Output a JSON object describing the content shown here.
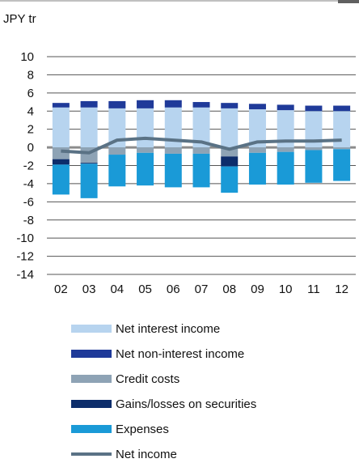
{
  "chart_data": {
    "type": "bar",
    "unit_label": "JPY tr",
    "categories": [
      "02",
      "03",
      "04",
      "05",
      "06",
      "07",
      "08",
      "09",
      "10",
      "11",
      "12"
    ],
    "ylim": [
      -14,
      10
    ],
    "yticks": [
      "10",
      "8",
      "6",
      "4",
      "2",
      "0",
      "-2",
      "-4",
      "-6",
      "-8",
      "-10",
      "-12",
      "-14"
    ],
    "grid": true,
    "legend_position": "bottom",
    "stacked_series": [
      {
        "name": "Net interest income",
        "color": "#b7d4ef",
        "sign": "positive",
        "values": [
          4.4,
          4.4,
          4.3,
          4.3,
          4.4,
          4.4,
          4.3,
          4.2,
          4.1,
          4.0,
          4.0
        ]
      },
      {
        "name": "Net non-interest income",
        "color": "#1f3a99",
        "sign": "positive",
        "values": [
          0.5,
          0.7,
          0.8,
          0.9,
          0.8,
          0.6,
          0.6,
          0.6,
          0.6,
          0.6,
          0.6
        ]
      },
      {
        "name": "Credit costs",
        "color": "#8ea3b5",
        "sign": "negative",
        "values": [
          -1.3,
          -1.7,
          -0.8,
          -0.6,
          -0.7,
          -0.7,
          -1.0,
          -0.6,
          -0.5,
          -0.3,
          -0.2
        ]
      },
      {
        "name": "Gains/losses on securities",
        "color": "#0d2d6b",
        "sign": "negative",
        "values": [
          -0.6,
          -0.1,
          0,
          0,
          0,
          0,
          -1.1,
          0,
          0,
          0,
          0
        ]
      },
      {
        "name": "Expenses",
        "color": "#1a9ad7",
        "sign": "negative",
        "values": [
          -3.3,
          -3.8,
          -3.5,
          -3.6,
          -3.7,
          -3.7,
          -2.9,
          -3.5,
          -3.6,
          -3.6,
          -3.5
        ]
      }
    ],
    "line_series": {
      "name": "Net income",
      "color": "#5a7285",
      "values": [
        -0.4,
        -0.6,
        0.8,
        1.0,
        0.8,
        0.6,
        -0.2,
        0.6,
        0.7,
        0.7,
        0.8
      ]
    }
  }
}
